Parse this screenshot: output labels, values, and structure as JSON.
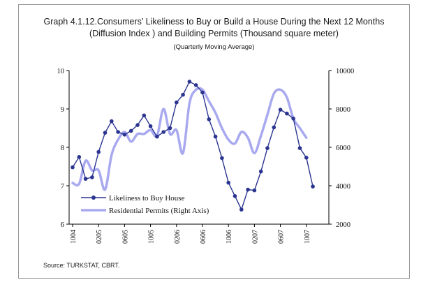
{
  "header": {
    "line1": "Graph 4.1.12.Consumers’ Likeliness to Buy or Build a House During the Next 12 Months",
    "line2": "(Diffusion Index ) and Building Permits (Thousand square meter)",
    "line3": "(Quarterly Moving Average)"
  },
  "source": "Source: TURKSTAT, CBRT.",
  "colors": {
    "likeliness": "#2b3590",
    "permits": "#a9a9f0",
    "axis": "#000000"
  },
  "chart_data": {
    "type": "line",
    "title": "Graph 4.1.12.Consumers’ Likeliness to Buy or Build a House During the Next 12 Months (Diffusion Index ) and Building Permits (Thousand square meter)",
    "subtitle": "(Quarterly Moving Average)",
    "left_axis": {
      "min": 6,
      "max": 10,
      "ticks": [
        "6",
        "7",
        "8",
        "9",
        "10"
      ]
    },
    "right_axis": {
      "min": 2000,
      "max": 10000,
      "ticks": [
        "2000",
        "4000",
        "6000",
        "8000",
        "10000"
      ]
    },
    "x_tick_labels": [
      "1004",
      "0205",
      "0605",
      "1005",
      "0206",
      "0606",
      "1006",
      "0207",
      "0607",
      "1007"
    ],
    "x_tick_positions": [
      0,
      4,
      8,
      12,
      16,
      20,
      24,
      28,
      32,
      36
    ],
    "series": [
      {
        "name": "Likeliness to Buy House",
        "axis": "left",
        "style": "line-markers",
        "x": [
          0,
          1,
          2,
          3,
          4,
          5,
          6,
          7,
          8,
          9,
          10,
          11,
          12,
          13,
          14,
          15,
          16,
          17,
          18,
          19,
          20,
          21,
          22,
          23,
          24,
          25,
          26,
          27,
          28,
          29,
          30,
          31,
          32,
          33,
          34,
          35,
          36,
          37
        ],
        "values": [
          7.48,
          7.75,
          7.18,
          7.22,
          7.88,
          8.38,
          8.68,
          8.4,
          8.33,
          8.43,
          8.58,
          8.83,
          8.55,
          8.28,
          8.4,
          8.5,
          9.17,
          9.37,
          9.71,
          9.62,
          9.43,
          8.73,
          8.28,
          7.72,
          7.08,
          6.73,
          6.38,
          6.9,
          6.88,
          7.37,
          7.98,
          8.52,
          8.98,
          8.88,
          8.75,
          7.98,
          7.73,
          6.98
        ]
      },
      {
        "name": "Residential Permits (Right Axis)",
        "axis": "right",
        "style": "smooth-line",
        "x": [
          0,
          1,
          2,
          3,
          4,
          5,
          6,
          7,
          8,
          9,
          10,
          11,
          12,
          13,
          14,
          15,
          16,
          17,
          18,
          19,
          20,
          21,
          22,
          23,
          24,
          25,
          26,
          27,
          28,
          29,
          30,
          31,
          32,
          33,
          34,
          35,
          36
        ],
        "values": [
          4150,
          4100,
          5300,
          4800,
          4800,
          3800,
          5600,
          6400,
          6800,
          6300,
          6700,
          6700,
          6900,
          6600,
          8000,
          6700,
          6900,
          5700,
          8300,
          9000,
          9000,
          8400,
          7800,
          7000,
          6400,
          6200,
          6800,
          6500,
          5700,
          6600,
          7700,
          8800,
          9000,
          8600,
          7500,
          7000,
          6500
        ]
      }
    ],
    "legend": {
      "position": "bottom-left",
      "entries": [
        "Likeliness to Buy House",
        "Residential Permits (Right Axis)"
      ]
    }
  }
}
